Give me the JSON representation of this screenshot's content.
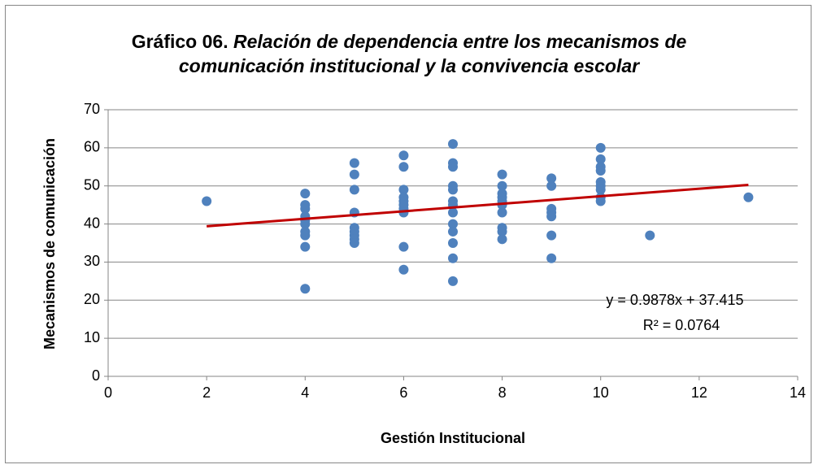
{
  "chart_data": {
    "type": "scatter",
    "title": "Gráfico 06.",
    "subtitle": "Relación de dependencia entre los mecanismos de comunicación institucional y la convivencia escolar",
    "x_label": "Gestión Institucional",
    "y_label": "Mecanismos de comunicación",
    "xlim": [
      0,
      14
    ],
    "xticks": [
      0,
      2,
      4,
      6,
      8,
      10,
      12,
      14
    ],
    "ylim": [
      0,
      70
    ],
    "yticks": [
      0,
      10,
      20,
      30,
      40,
      50,
      60,
      70
    ],
    "grid": true,
    "series": [
      {
        "color": "#4f81bd",
        "x": [
          2,
          4,
          4,
          4,
          4,
          4,
          4,
          4,
          4,
          4,
          4,
          5,
          5,
          5,
          5,
          5,
          5,
          5,
          5,
          5,
          6,
          6,
          6,
          6,
          6,
          6,
          6,
          6,
          6,
          6,
          7,
          7,
          7,
          7,
          7,
          7,
          7,
          7,
          7,
          7,
          7,
          7,
          7,
          8,
          8,
          8,
          8,
          8,
          8,
          8,
          8,
          8,
          8,
          9,
          9,
          9,
          9,
          9,
          9,
          9,
          10,
          10,
          10,
          10,
          10,
          10,
          10,
          10,
          10,
          11,
          13
        ],
        "values": [
          46,
          48,
          45,
          44,
          42,
          41,
          40,
          38,
          37,
          34,
          23,
          56,
          53,
          49,
          43,
          39,
          38,
          37,
          36,
          35,
          58,
          55,
          49,
          47,
          46,
          45,
          44,
          43,
          34,
          28,
          61,
          56,
          55,
          50,
          49,
          46,
          45,
          43,
          40,
          38,
          35,
          31,
          25,
          53,
          50,
          48,
          47,
          46,
          45,
          43,
          39,
          38,
          36,
          52,
          50,
          44,
          43,
          42,
          37,
          31,
          60,
          57,
          55,
          54,
          51,
          50,
          49,
          47,
          46,
          37,
          47
        ]
      }
    ],
    "trendline": {
      "color": "#c00000",
      "slope": 0.9878,
      "intercept": 37.415,
      "equation": "y = 0.9878x + 37.415",
      "r2_label": "R² = 0.0764"
    }
  }
}
